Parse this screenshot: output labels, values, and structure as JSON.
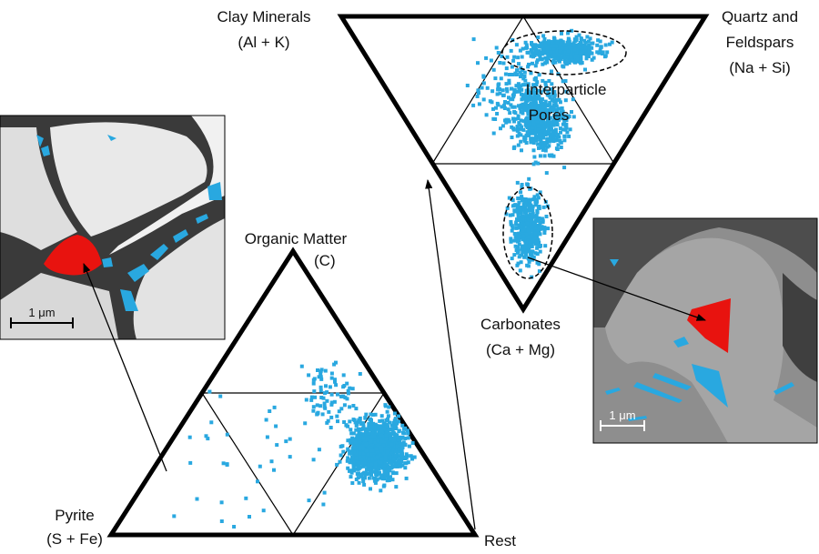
{
  "upper_triangle": {
    "vertices": {
      "top_left": [
        "Clay Minerals",
        "(Al + K)"
      ],
      "top_right": [
        "Quartz and",
        "Feldspars",
        "(Na + Si)"
      ],
      "bottom": [
        "Carbonates",
        "(Ca + Mg)"
      ]
    },
    "annotation": [
      "Interparticle",
      "Pores"
    ]
  },
  "lower_triangle": {
    "vertices": {
      "top": [
        "Organic Matter",
        "(C)"
      ],
      "bottom_left": [
        "Pyrite",
        "(S + Fe)"
      ],
      "bottom_right": [
        "Rest"
      ]
    }
  },
  "images": {
    "left": {
      "scale_bar": "1 μm"
    },
    "right": {
      "scale_bar": "1 μm"
    }
  }
}
